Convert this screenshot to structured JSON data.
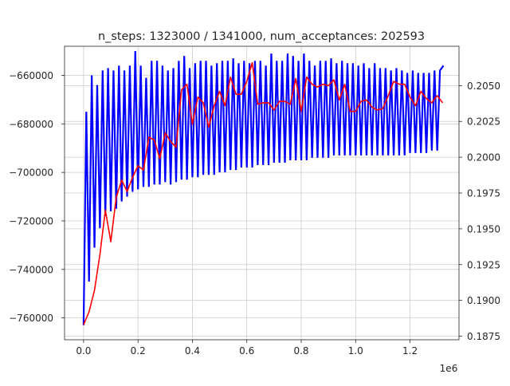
{
  "chart_data": {
    "type": "line",
    "title": "n_steps: 1323000 / 1341000, num_acceptances: 202593",
    "x_offset_label": "1e6",
    "grid": true,
    "xlim": [
      -0.07,
      1.38
    ],
    "x_ticks": [
      0.0,
      0.2,
      0.4,
      0.6,
      0.8,
      1.0,
      1.2
    ],
    "x_tick_labels": [
      "0.0",
      "0.2",
      "0.4",
      "0.6",
      "0.8",
      "1.0",
      "1.2"
    ],
    "left_axis": {
      "ylim": [
        -769000,
        -648000
      ],
      "ticks": [
        -760000,
        -740000,
        -720000,
        -700000,
        -680000,
        -660000
      ],
      "tick_labels": [
        "−760000",
        "−740000",
        "−720000",
        "−700000",
        "−680000",
        "−660000"
      ]
    },
    "right_axis": {
      "ylim": [
        0.18725,
        0.20775
      ],
      "ticks": [
        0.1875,
        0.19,
        0.1925,
        0.195,
        0.1975,
        0.2,
        0.2025,
        0.205
      ],
      "tick_labels": [
        "0.1875",
        "0.1900",
        "0.1925",
        "0.1950",
        "0.1975",
        "0.2000",
        "0.2025",
        "0.2050"
      ]
    },
    "series": [
      {
        "color": "#0000ff",
        "axis": "left",
        "kind": "oscillation_envelope",
        "x_start": 0.0,
        "period": 0.02,
        "x_end": 1.323,
        "first_low": -763000,
        "peaks": [
          [
            0.01,
            -675000
          ],
          [
            0.03,
            -660000
          ],
          [
            0.05,
            -664000
          ],
          [
            0.07,
            -658000
          ],
          [
            0.09,
            -657000
          ],
          [
            0.11,
            -658000
          ],
          [
            0.13,
            -656000
          ],
          [
            0.15,
            -658000
          ],
          [
            0.17,
            -656000
          ],
          [
            0.19,
            -650000
          ],
          [
            0.21,
            -656000
          ],
          [
            0.23,
            -661000
          ],
          [
            0.25,
            -654000
          ],
          [
            0.27,
            -654000
          ],
          [
            0.29,
            -656000
          ],
          [
            0.31,
            -658000
          ],
          [
            0.33,
            -657000
          ],
          [
            0.35,
            -654000
          ],
          [
            0.37,
            -652000
          ],
          [
            0.39,
            -657000
          ],
          [
            0.41,
            -655000
          ],
          [
            0.43,
            -654000
          ],
          [
            0.45,
            -654000
          ],
          [
            0.47,
            -656000
          ],
          [
            0.49,
            -655000
          ],
          [
            0.51,
            -654000
          ],
          [
            0.53,
            -654000
          ],
          [
            0.55,
            -653000
          ],
          [
            0.57,
            -655000
          ],
          [
            0.59,
            -654000
          ],
          [
            0.61,
            -655000
          ],
          [
            0.63,
            -654000
          ],
          [
            0.65,
            -654000
          ],
          [
            0.67,
            -656000
          ],
          [
            0.69,
            -651000
          ],
          [
            0.71,
            -654000
          ],
          [
            0.73,
            -654000
          ],
          [
            0.75,
            -651000
          ],
          [
            0.77,
            -652000
          ],
          [
            0.79,
            -654000
          ],
          [
            0.81,
            -651000
          ],
          [
            0.83,
            -654000
          ],
          [
            0.85,
            -656000
          ],
          [
            0.87,
            -654000
          ],
          [
            0.89,
            -654000
          ],
          [
            0.91,
            -653000
          ],
          [
            0.93,
            -655000
          ],
          [
            0.95,
            -654000
          ],
          [
            0.97,
            -655000
          ],
          [
            0.99,
            -655000
          ],
          [
            1.01,
            -656000
          ],
          [
            1.03,
            -655000
          ],
          [
            1.05,
            -657000
          ],
          [
            1.07,
            -655000
          ],
          [
            1.09,
            -657000
          ],
          [
            1.11,
            -657000
          ],
          [
            1.13,
            -658000
          ],
          [
            1.15,
            -657000
          ],
          [
            1.17,
            -658000
          ],
          [
            1.19,
            -659000
          ],
          [
            1.21,
            -658000
          ],
          [
            1.23,
            -659000
          ],
          [
            1.25,
            -659000
          ],
          [
            1.27,
            -659000
          ],
          [
            1.29,
            -658000
          ],
          [
            1.31,
            -658000
          ],
          [
            1.323,
            -656000
          ]
        ],
        "troughs": [
          [
            0.02,
            -745000
          ],
          [
            0.04,
            -731000
          ],
          [
            0.06,
            -723000
          ],
          [
            0.08,
            -718000
          ],
          [
            0.1,
            -716000
          ],
          [
            0.12,
            -715000
          ],
          [
            0.14,
            -712000
          ],
          [
            0.16,
            -710000
          ],
          [
            0.18,
            -708000
          ],
          [
            0.2,
            -707000
          ],
          [
            0.22,
            -706000
          ],
          [
            0.24,
            -706000
          ],
          [
            0.26,
            -705000
          ],
          [
            0.28,
            -705000
          ],
          [
            0.3,
            -704000
          ],
          [
            0.32,
            -705000
          ],
          [
            0.34,
            -704000
          ],
          [
            0.36,
            -703000
          ],
          [
            0.38,
            -703000
          ],
          [
            0.4,
            -702000
          ],
          [
            0.42,
            -702000
          ],
          [
            0.44,
            -701000
          ],
          [
            0.46,
            -701000
          ],
          [
            0.48,
            -701000
          ],
          [
            0.5,
            -700000
          ],
          [
            0.52,
            -700000
          ],
          [
            0.54,
            -699000
          ],
          [
            0.56,
            -699000
          ],
          [
            0.58,
            -698000
          ],
          [
            0.6,
            -698000
          ],
          [
            0.62,
            -698000
          ],
          [
            0.64,
            -697000
          ],
          [
            0.66,
            -697000
          ],
          [
            0.68,
            -697000
          ],
          [
            0.7,
            -696000
          ],
          [
            0.72,
            -696000
          ],
          [
            0.74,
            -696000
          ],
          [
            0.76,
            -695000
          ],
          [
            0.78,
            -695000
          ],
          [
            0.8,
            -695000
          ],
          [
            0.82,
            -695000
          ],
          [
            0.84,
            -694000
          ],
          [
            0.86,
            -694000
          ],
          [
            0.88,
            -694000
          ],
          [
            0.9,
            -694000
          ],
          [
            0.92,
            -693000
          ],
          [
            0.94,
            -693000
          ],
          [
            0.96,
            -693000
          ],
          [
            0.98,
            -693000
          ],
          [
            1.0,
            -693000
          ],
          [
            1.02,
            -693000
          ],
          [
            1.04,
            -693000
          ],
          [
            1.06,
            -693000
          ],
          [
            1.08,
            -693000
          ],
          [
            1.1,
            -693000
          ],
          [
            1.12,
            -693000
          ],
          [
            1.14,
            -693000
          ],
          [
            1.16,
            -693000
          ],
          [
            1.18,
            -693000
          ],
          [
            1.2,
            -692000
          ],
          [
            1.22,
            -692000
          ],
          [
            1.24,
            -692000
          ],
          [
            1.26,
            -692000
          ],
          [
            1.28,
            -691000
          ],
          [
            1.3,
            -691000
          ]
        ]
      },
      {
        "color": "#ff0000",
        "axis": "right",
        "kind": "line",
        "x": [
          0.0,
          0.02,
          0.04,
          0.06,
          0.08,
          0.1,
          0.12,
          0.14,
          0.16,
          0.18,
          0.2,
          0.22,
          0.24,
          0.26,
          0.28,
          0.3,
          0.32,
          0.34,
          0.36,
          0.38,
          0.4,
          0.42,
          0.44,
          0.46,
          0.48,
          0.5,
          0.52,
          0.54,
          0.56,
          0.58,
          0.6,
          0.62,
          0.64,
          0.66,
          0.68,
          0.7,
          0.72,
          0.74,
          0.76,
          0.78,
          0.8,
          0.82,
          0.84,
          0.86,
          0.88,
          0.9,
          0.92,
          0.94,
          0.96,
          0.98,
          1.0,
          1.02,
          1.04,
          1.06,
          1.08,
          1.1,
          1.12,
          1.14,
          1.16,
          1.18,
          1.2,
          1.22,
          1.24,
          1.26,
          1.28,
          1.3,
          1.32
        ],
        "y": [
          0.1883,
          0.1892,
          0.1907,
          0.1932,
          0.1963,
          0.1941,
          0.1972,
          0.1984,
          0.1976,
          0.1986,
          0.1994,
          0.1991,
          0.2014,
          0.2012,
          0.1999,
          0.2017,
          0.2011,
          0.2007,
          0.2047,
          0.2051,
          0.2023,
          0.2042,
          0.2038,
          0.2021,
          0.2036,
          0.2046,
          0.2036,
          0.2056,
          0.2044,
          0.2044,
          0.2053,
          0.2066,
          0.2037,
          0.2038,
          0.2038,
          0.2033,
          0.2039,
          0.2039,
          0.2037,
          0.2055,
          0.2032,
          0.2056,
          0.2051,
          0.2049,
          0.2051,
          0.205,
          0.2054,
          0.204,
          0.2051,
          0.2032,
          0.2032,
          0.2039,
          0.204,
          0.2035,
          0.2033,
          0.2034,
          0.2043,
          0.2053,
          0.2051,
          0.2051,
          0.2042,
          0.2036,
          0.2046,
          0.2041,
          0.2038,
          0.2043,
          0.2038
        ]
      }
    ]
  }
}
